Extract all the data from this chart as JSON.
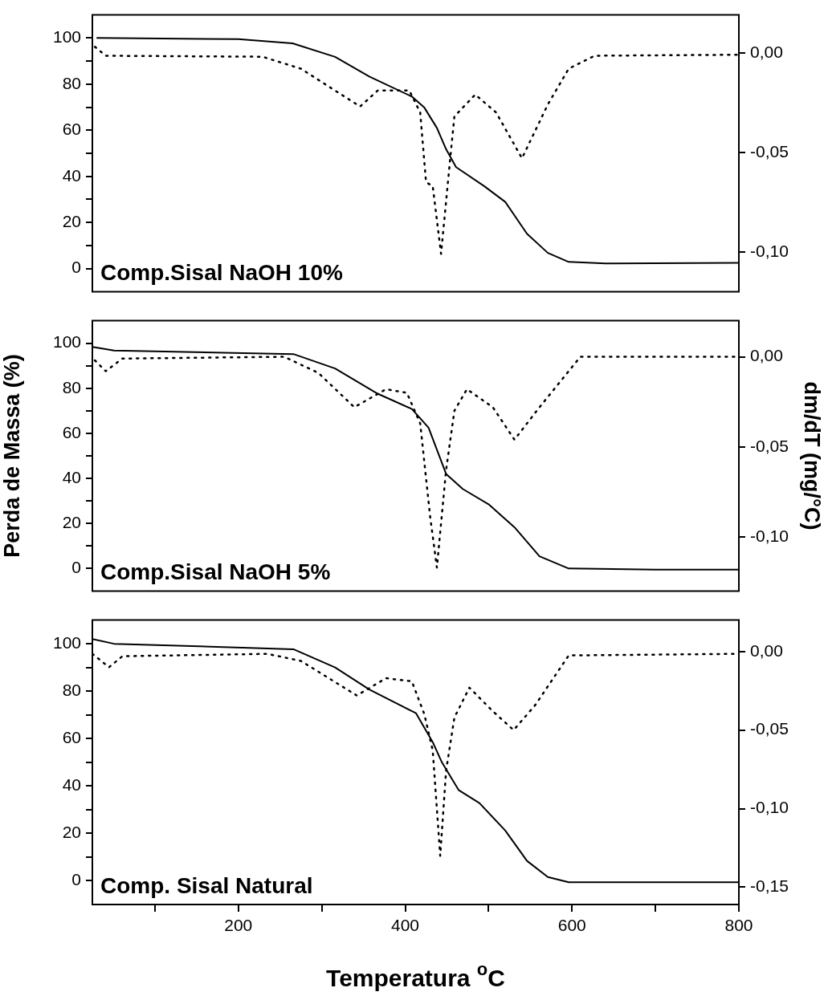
{
  "chart_data": [
    {
      "type": "line",
      "annotations": [
        "Comp.Sisal NaOH 10%"
      ],
      "xlim": [
        25,
        800
      ],
      "ylim": [
        -10,
        110
      ],
      "yticks": [
        0,
        {
          "value": 10,
          "label": null
        },
        20,
        {
          "value": 30,
          "label": null
        },
        40,
        {
          "value": 50,
          "label": null
        },
        60,
        {
          "value": 70,
          "label": null
        },
        80,
        {
          "value": 90,
          "label": null
        },
        100
      ],
      "y2lim": [
        -0.12,
        0.019
      ],
      "y2ticks": [
        {
          "value": 0,
          "label": "0,00"
        },
        {
          "value": -0.05,
          "label": "-0,05"
        },
        {
          "value": -0.1,
          "label": "-0,10"
        }
      ],
      "tick_labels": "y",
      "grid": false,
      "legend": false,
      "series": [
        {
          "color": "#000000",
          "line_style": "solid",
          "x": [
            30,
            200,
            265,
            316,
            357,
            408,
            423,
            438,
            449,
            461,
            495,
            520,
            546,
            571,
            596,
            640,
            800
          ],
          "values": [
            100,
            99.5,
            97.7,
            91.8,
            83.3,
            74.6,
            69.8,
            61,
            51.8,
            44,
            35.7,
            28.9,
            15.1,
            6.8,
            2.9,
            2.2,
            2.5
          ]
        },
        {
          "color": "#000000",
          "line_style": "dotted",
          "axis": "y2",
          "x": [
            28,
            41,
            229,
            275,
            316,
            346,
            367,
            405,
            418,
            425,
            433,
            443,
            454,
            459,
            484,
            509,
            540,
            571,
            596,
            627,
            800
          ],
          "values": [
            0.003,
            -0.0015,
            -0.002,
            -0.008,
            -0.019,
            -0.027,
            -0.019,
            -0.019,
            -0.03,
            -0.065,
            -0.067,
            -0.101,
            -0.053,
            -0.032,
            -0.021,
            -0.03,
            -0.053,
            -0.026,
            -0.008,
            -0.0015,
            -0.001
          ]
        }
      ]
    },
    {
      "type": "line",
      "annotations": [
        "Comp.Sisal NaOH 5%"
      ],
      "ylabel": "Perda de Massa (%)",
      "y2label": "dm/dT (mg/°C)",
      "xlim": [
        25,
        800
      ],
      "ylim": [
        -10,
        110
      ],
      "yticks": [
        0,
        {
          "value": 10,
          "label": null
        },
        20,
        {
          "value": 30,
          "label": null
        },
        40,
        {
          "value": 50,
          "label": null
        },
        60,
        {
          "value": 70,
          "label": null
        },
        80,
        {
          "value": 90,
          "label": null
        },
        100
      ],
      "y2lim": [
        -0.13,
        0.02
      ],
      "y2ticks": [
        {
          "value": 0,
          "label": "0,00"
        },
        {
          "value": -0.05,
          "label": "-0,05"
        },
        {
          "value": -0.1,
          "label": "-0,10"
        }
      ],
      "tick_labels": "y",
      "grid": false,
      "legend": false,
      "series": [
        {
          "color": "#000000",
          "line_style": "solid",
          "x": [
            25,
            51,
            266,
            316,
            367,
            408,
            428,
            449,
            469,
            500,
            531,
            561,
            596,
            700,
            800
          ],
          "values": [
            98.4,
            96.8,
            95.2,
            88.8,
            77.6,
            70.8,
            62.5,
            42,
            35.3,
            28.5,
            18.3,
            5.4,
            0,
            -0.5,
            -0.5
          ]
        },
        {
          "color": "#000000",
          "line_style": "dotted",
          "axis": "y2",
          "x": [
            28,
            41,
            61,
            255,
            296,
            339,
            377,
            402,
            418,
            430,
            438,
            449,
            459,
            474,
            505,
            531,
            561,
            610,
            800
          ],
          "values": [
            -0.002,
            -0.008,
            -0.001,
            0,
            -0.009,
            -0.028,
            -0.018,
            -0.02,
            -0.037,
            -0.089,
            -0.117,
            -0.063,
            -0.03,
            -0.018,
            -0.028,
            -0.046,
            -0.028,
            0,
            0
          ]
        }
      ]
    },
    {
      "type": "line",
      "annotations": [
        "Comp. Sisal Natural"
      ],
      "xlabel": "Temperatura $^{o}$C",
      "xlim": [
        25,
        800
      ],
      "xticks": [
        {
          "value": 100,
          "label": null
        },
        200,
        {
          "value": 300,
          "label": null
        },
        400,
        {
          "value": 500,
          "label": null
        },
        600,
        {
          "value": 700,
          "label": null
        },
        800
      ],
      "ylim": [
        -10,
        110
      ],
      "yticks": [
        0,
        {
          "value": 10,
          "label": null
        },
        20,
        {
          "value": 30,
          "label": null
        },
        40,
        {
          "value": 50,
          "label": null
        },
        60,
        {
          "value": 70,
          "label": null
        },
        80,
        {
          "value": 90,
          "label": null
        },
        100
      ],
      "y2lim": [
        -0.161,
        0.02
      ],
      "y2ticks": [
        {
          "value": 0,
          "label": "0,00"
        },
        {
          "value": -0.05,
          "label": "-0,05"
        },
        {
          "value": -0.1,
          "label": "-0,10"
        },
        {
          "value": -0.15,
          "label": "-0,15"
        }
      ],
      "grid": false,
      "legend": false,
      "series": [
        {
          "color": "#000000",
          "line_style": "solid",
          "x": [
            25,
            51,
            266,
            316,
            357,
            413,
            433,
            444,
            464,
            489,
            520,
            546,
            571,
            596,
            800
          ],
          "values": [
            102,
            100,
            97.7,
            90,
            80.7,
            70.7,
            58.5,
            50,
            38.3,
            32.8,
            21.2,
            8.4,
            1.6,
            -0.6,
            -0.6
          ]
        },
        {
          "color": "#000000",
          "line_style": "dotted",
          "axis": "y2",
          "x": [
            25,
            45,
            61,
            235,
            275,
            342,
            377,
            408,
            423,
            433,
            442,
            449,
            459,
            477,
            505,
            530,
            556,
            596,
            800
          ],
          "values": [
            -0.0015,
            -0.01,
            -0.003,
            -0.0015,
            -0.006,
            -0.028,
            -0.017,
            -0.019,
            -0.04,
            -0.063,
            -0.13,
            -0.076,
            -0.042,
            -0.023,
            -0.038,
            -0.05,
            -0.034,
            -0.0025,
            -0.0015
          ]
        }
      ]
    }
  ]
}
